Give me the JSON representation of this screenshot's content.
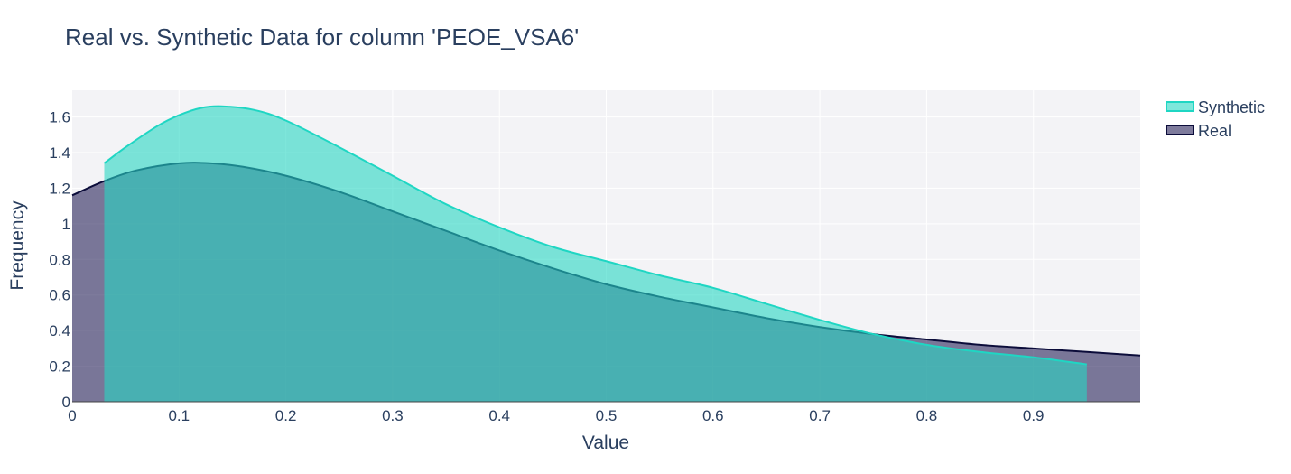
{
  "chart_data": {
    "type": "area",
    "title": "Real vs. Synthetic Data for column 'PEOE_VSA6'",
    "xlabel": "Value",
    "ylabel": "Frequency",
    "xlim": [
      0,
      1.0
    ],
    "ylim": [
      0,
      1.75
    ],
    "x_ticks": [
      0,
      0.1,
      0.2,
      0.3,
      0.4,
      0.5,
      0.6,
      0.7,
      0.8,
      0.9
    ],
    "x_tick_labels": [
      "0",
      "0.1",
      "0.2",
      "0.3",
      "0.4",
      "0.5",
      "0.6",
      "0.7",
      "0.8",
      "0.9"
    ],
    "y_ticks": [
      0,
      0.2,
      0.4,
      0.6,
      0.8,
      1,
      1.2,
      1.4,
      1.6
    ],
    "y_tick_labels": [
      "0",
      "0.2",
      "0.4",
      "0.6",
      "0.8",
      "1",
      "1.2",
      "1.4",
      "1.6"
    ],
    "grid": true,
    "legend_position": "top-right",
    "series": [
      {
        "name": "Real",
        "color": "#0b0c3a",
        "fill": "rgba(40,35,90,0.6)",
        "x": [
          0,
          0.03,
          0.06,
          0.1,
          0.13,
          0.16,
          0.2,
          0.25,
          0.3,
          0.35,
          0.4,
          0.45,
          0.5,
          0.55,
          0.6,
          0.65,
          0.7,
          0.75,
          0.8,
          0.85,
          0.9,
          0.95,
          1.0
        ],
        "y": [
          1.16,
          1.24,
          1.3,
          1.34,
          1.34,
          1.32,
          1.27,
          1.18,
          1.07,
          0.96,
          0.85,
          0.75,
          0.66,
          0.59,
          0.53,
          0.47,
          0.42,
          0.38,
          0.35,
          0.32,
          0.3,
          0.28,
          0.26
        ]
      },
      {
        "name": "Synthetic",
        "color": "#1fd6c3",
        "fill": "rgba(40,215,195,0.6)",
        "x": [
          0.03,
          0.05,
          0.08,
          0.1,
          0.12,
          0.14,
          0.17,
          0.2,
          0.25,
          0.3,
          0.35,
          0.4,
          0.45,
          0.5,
          0.55,
          0.6,
          0.65,
          0.7,
          0.75,
          0.8,
          0.85,
          0.9,
          0.95
        ],
        "y": [
          1.34,
          1.43,
          1.55,
          1.61,
          1.65,
          1.66,
          1.64,
          1.58,
          1.43,
          1.27,
          1.11,
          0.98,
          0.87,
          0.79,
          0.71,
          0.64,
          0.55,
          0.46,
          0.38,
          0.32,
          0.28,
          0.25,
          0.21
        ]
      }
    ]
  }
}
